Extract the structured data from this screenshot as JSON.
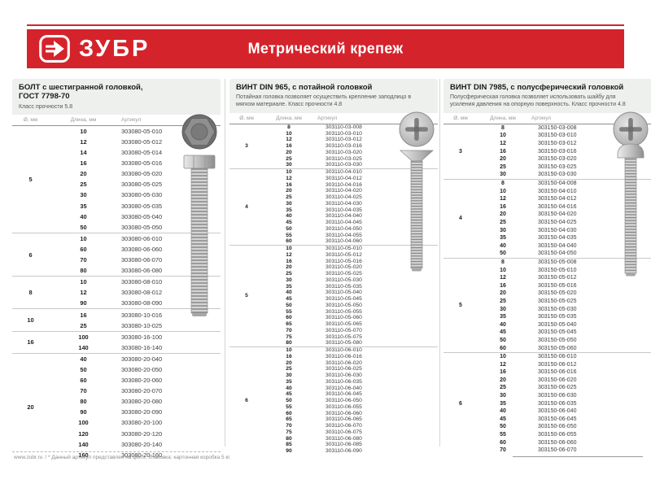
{
  "header": {
    "brand": "ЗУБР",
    "title": "Метрический крепеж"
  },
  "colors": {
    "accent_red": "#d5232b",
    "panel_head_bg": "#eef0ee"
  },
  "columns": {
    "diameter": "Ø, мм",
    "length": "Длина, мм",
    "article": "Артикул"
  },
  "footer": {
    "site": "www.zubr.ru",
    "note": "/   * Данный артикул представлен на фото. Упаковка: картонная коробка 5 кг."
  },
  "icons": {
    "logo": "zubr-arrow-logo",
    "photos": [
      "hex-bolt-photo",
      "countersunk-screw-photo",
      "pan-head-screw-photo"
    ]
  },
  "tables": [
    {
      "title1": "БОЛТ с шестигранной головкой,",
      "title2": "ГОСТ 7798-70",
      "desc": "Класс прочности 5.8",
      "groups": [
        {
          "d": "5",
          "rows": [
            [
              "10",
              "303080-05-010"
            ],
            [
              "12",
              "303080-05-012"
            ],
            [
              "14",
              "303080-05-014"
            ],
            [
              "16",
              "303080-05-016"
            ],
            [
              "20",
              "303080-05-020"
            ],
            [
              "25",
              "303080-05-025"
            ],
            [
              "30",
              "303080-05-030"
            ],
            [
              "35",
              "303080-05-035"
            ],
            [
              "40",
              "303080-05-040"
            ],
            [
              "50",
              "303080-05-050"
            ]
          ]
        },
        {
          "d": "6",
          "rows": [
            [
              "10",
              "303080-06-010"
            ],
            [
              "60",
              "303080-06-060"
            ],
            [
              "70",
              "303080-06-070"
            ],
            [
              "80",
              "303080-06-080"
            ]
          ]
        },
        {
          "d": "8",
          "rows": [
            [
              "10",
              "303080-08-010"
            ],
            [
              "12",
              "303080-08-012"
            ],
            [
              "90",
              "303080-08-090"
            ]
          ]
        },
        {
          "d": "10",
          "rows": [
            [
              "16",
              "303080-10-016"
            ],
            [
              "25",
              "303080-10-025"
            ]
          ]
        },
        {
          "d": "16",
          "rows": [
            [
              "100",
              "303080-16-100"
            ],
            [
              "140",
              "303080-16-140"
            ]
          ]
        },
        {
          "d": "20",
          "rows": [
            [
              "40",
              "303080-20-040"
            ],
            [
              "50",
              "303080-20-050"
            ],
            [
              "60",
              "303080-20-060"
            ],
            [
              "70",
              "303080-20-070"
            ],
            [
              "80",
              "303080-20-080"
            ],
            [
              "90",
              "303080-20-090"
            ],
            [
              "100",
              "303080-20-100"
            ],
            [
              "120",
              "303080-20-120"
            ],
            [
              "140",
              "303080-20-140"
            ],
            [
              "160",
              "303080-20-160"
            ]
          ]
        }
      ]
    },
    {
      "title1": "ВИНТ DIN 965, с потайной головкой",
      "title2": "",
      "desc": "Потайная головка позволяет осуществить крепление заподлицо в мягком материале. Класс прочности 4.8",
      "groups": [
        {
          "d": "3",
          "rows": [
            [
              "8",
              "303110-03-008"
            ],
            [
              "10",
              "303110-03-010"
            ],
            [
              "12",
              "303110-03-012"
            ],
            [
              "16",
              "303110-03-016"
            ],
            [
              "20",
              "303110-03-020"
            ],
            [
              "25",
              "303110-03-025"
            ],
            [
              "30",
              "303110-03-030"
            ]
          ]
        },
        {
          "d": "4",
          "rows": [
            [
              "10",
              "303110-04-010"
            ],
            [
              "12",
              "303110-04-012"
            ],
            [
              "16",
              "303110-04-016"
            ],
            [
              "20",
              "303110-04-020"
            ],
            [
              "25",
              "303110-04-025"
            ],
            [
              "30",
              "303110-04-030"
            ],
            [
              "35",
              "303110-04-035"
            ],
            [
              "40",
              "303110-04-040"
            ],
            [
              "45",
              "303110-04-045"
            ],
            [
              "50",
              "303110-04-050"
            ],
            [
              "55",
              "303110-04-055"
            ],
            [
              "60",
              "303110-04-060"
            ]
          ]
        },
        {
          "d": "5",
          "rows": [
            [
              "10",
              "303110-05-010"
            ],
            [
              "12",
              "303110-05-012"
            ],
            [
              "16",
              "303110-05-016"
            ],
            [
              "20",
              "303110-05-020"
            ],
            [
              "25",
              "303110-05-025"
            ],
            [
              "30",
              "303110-05-030"
            ],
            [
              "35",
              "303110-05-035"
            ],
            [
              "40",
              "303110-05-040"
            ],
            [
              "45",
              "303110-05-045"
            ],
            [
              "50",
              "303110-05-050"
            ],
            [
              "55",
              "303110-05-055"
            ],
            [
              "60",
              "303110-05-060"
            ],
            [
              "65",
              "303110-05-065"
            ],
            [
              "70",
              "303110-05-070"
            ],
            [
              "75",
              "303110-05-075"
            ],
            [
              "80",
              "303110-05-080"
            ]
          ]
        },
        {
          "d": "6",
          "rows": [
            [
              "10",
              "303110-06-010"
            ],
            [
              "16",
              "303110-06-016"
            ],
            [
              "20",
              "303110-06-020"
            ],
            [
              "25",
              "303110-06-025"
            ],
            [
              "30",
              "303110-06-030"
            ],
            [
              "35",
              "303110-06-035"
            ],
            [
              "40",
              "303110-06-040"
            ],
            [
              "45",
              "303110-06-045"
            ],
            [
              "50",
              "303110-06-050"
            ],
            [
              "55",
              "303110-06-055"
            ],
            [
              "60",
              "303110-06-060"
            ],
            [
              "65",
              "303110-06-065"
            ],
            [
              "70",
              "303110-06-070"
            ],
            [
              "75",
              "303110-06-075"
            ],
            [
              "80",
              "303110-06-080"
            ],
            [
              "85",
              "303110-06-085"
            ],
            [
              "90",
              "303110-06-090"
            ]
          ]
        }
      ]
    },
    {
      "title1": "ВИНТ DIN 7985, с полусферический головкой",
      "title2": "",
      "desc": "Полусферическая головка позволяет использовать шайбу для усиления давления на опорную поверхность. Класс прочности 4.8",
      "groups": [
        {
          "d": "3",
          "rows": [
            [
              "8",
              "303150-03-008"
            ],
            [
              "10",
              "303150-03-010"
            ],
            [
              "12",
              "303150-03-012"
            ],
            [
              "16",
              "303150-03-016"
            ],
            [
              "20",
              "303150-03-020"
            ],
            [
              "25",
              "303150-03-025"
            ],
            [
              "30",
              "303150-03-030"
            ]
          ]
        },
        {
          "d": "4",
          "rows": [
            [
              "8",
              "303150-04-008"
            ],
            [
              "10",
              "303150-04-010"
            ],
            [
              "12",
              "303150-04-012"
            ],
            [
              "16",
              "303150-04-016"
            ],
            [
              "20",
              "303150-04-020"
            ],
            [
              "25",
              "303150-04-025"
            ],
            [
              "30",
              "303150-04-030"
            ],
            [
              "35",
              "303150-04-035"
            ],
            [
              "40",
              "303150-04-040"
            ],
            [
              "50",
              "303150-04-050"
            ]
          ]
        },
        {
          "d": "5",
          "rows": [
            [
              "8",
              "303150-05-008"
            ],
            [
              "10",
              "303150-05-010"
            ],
            [
              "12",
              "303150-05-012"
            ],
            [
              "16",
              "303150-05-016"
            ],
            [
              "20",
              "303150-05-020"
            ],
            [
              "25",
              "303150-05-025"
            ],
            [
              "30",
              "303150-05-030"
            ],
            [
              "35",
              "303150-05-035"
            ],
            [
              "40",
              "303150-05-040"
            ],
            [
              "45",
              "303150-05-045"
            ],
            [
              "50",
              "303150-05-050"
            ],
            [
              "60",
              "303150-05-060"
            ]
          ]
        },
        {
          "d": "6",
          "rows": [
            [
              "10",
              "303150-06-010"
            ],
            [
              "12",
              "303150-06-012"
            ],
            [
              "16",
              "303150-06-016"
            ],
            [
              "20",
              "303150-06-020"
            ],
            [
              "25",
              "303150-06-025"
            ],
            [
              "30",
              "303150-06-030"
            ],
            [
              "35",
              "303150-06-035"
            ],
            [
              "40",
              "303150-06-040"
            ],
            [
              "45",
              "303150-06-045"
            ],
            [
              "50",
              "303150-06-050"
            ],
            [
              "55",
              "303150-06-055"
            ],
            [
              "60",
              "303150-06-060"
            ],
            [
              "70",
              "303150-06-070"
            ]
          ]
        }
      ]
    }
  ]
}
